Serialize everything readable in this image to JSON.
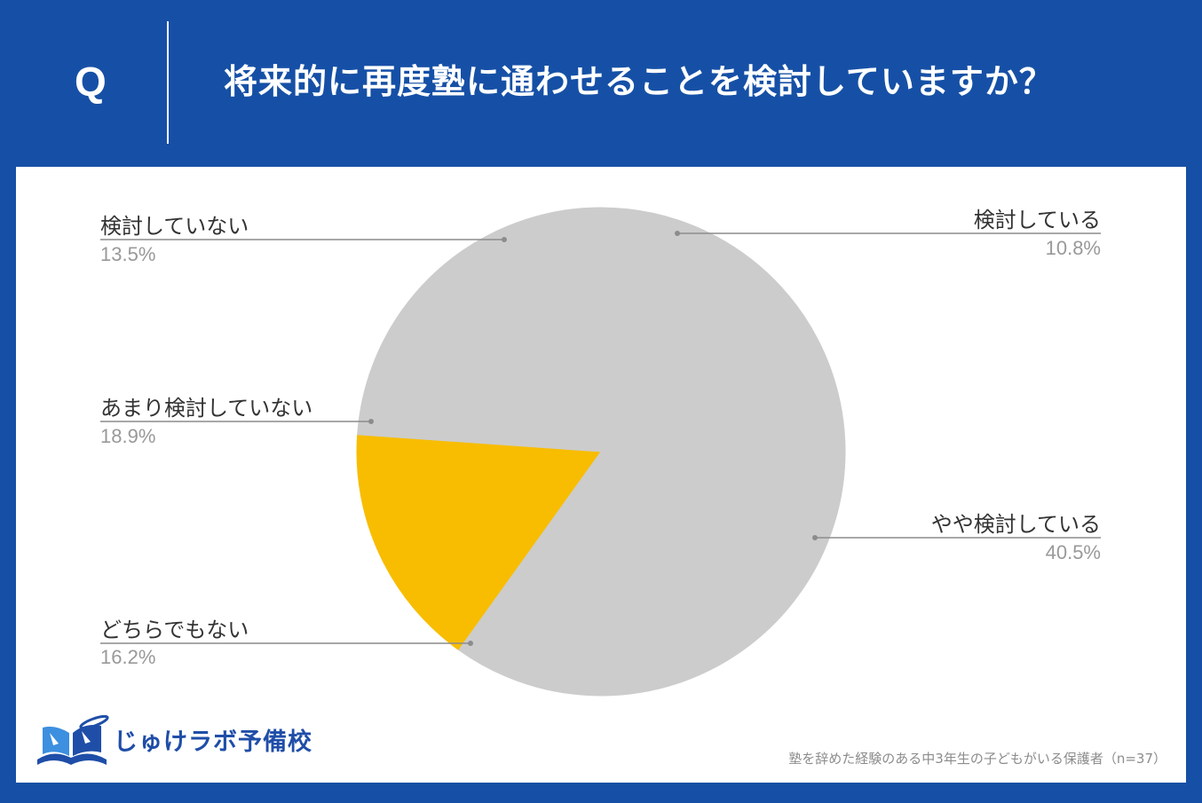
{
  "header": {
    "q_label": "Q",
    "question": "将来的に再度塾に通わせることを検討していますか？"
  },
  "chart_data": {
    "type": "pie",
    "start_angle_deg": 176,
    "direction": "counterclockwise",
    "slices": [
      {
        "label": "どちらでもない",
        "value": 16.2,
        "value_label": "16.2%",
        "color": "#f8bd00"
      },
      {
        "label": "やや検討している",
        "value": 40.5,
        "value_label": "40.5%",
        "color": "#cccccc"
      },
      {
        "label": "検討している",
        "value": 10.8,
        "value_label": "10.8%",
        "color": "#cccccc"
      },
      {
        "label": "検討していない",
        "value": 13.5,
        "value_label": "13.5%",
        "color": "#cccccc"
      },
      {
        "label": "あまり検討していない",
        "value": 18.9,
        "value_label": "18.9%",
        "color": "#cccccc"
      }
    ],
    "legend": "none"
  },
  "logo": {
    "text": "じゅけラボ予備校"
  },
  "footnote": "塾を辞めた経験のある中3年生の子どもがいる保護者（n=37）",
  "colors": {
    "background": "#1650a6",
    "panel": "#ffffff",
    "highlight": "#f8bd00",
    "slice_default": "#cccccc",
    "label_text": "#333333",
    "value_text": "#999999"
  }
}
